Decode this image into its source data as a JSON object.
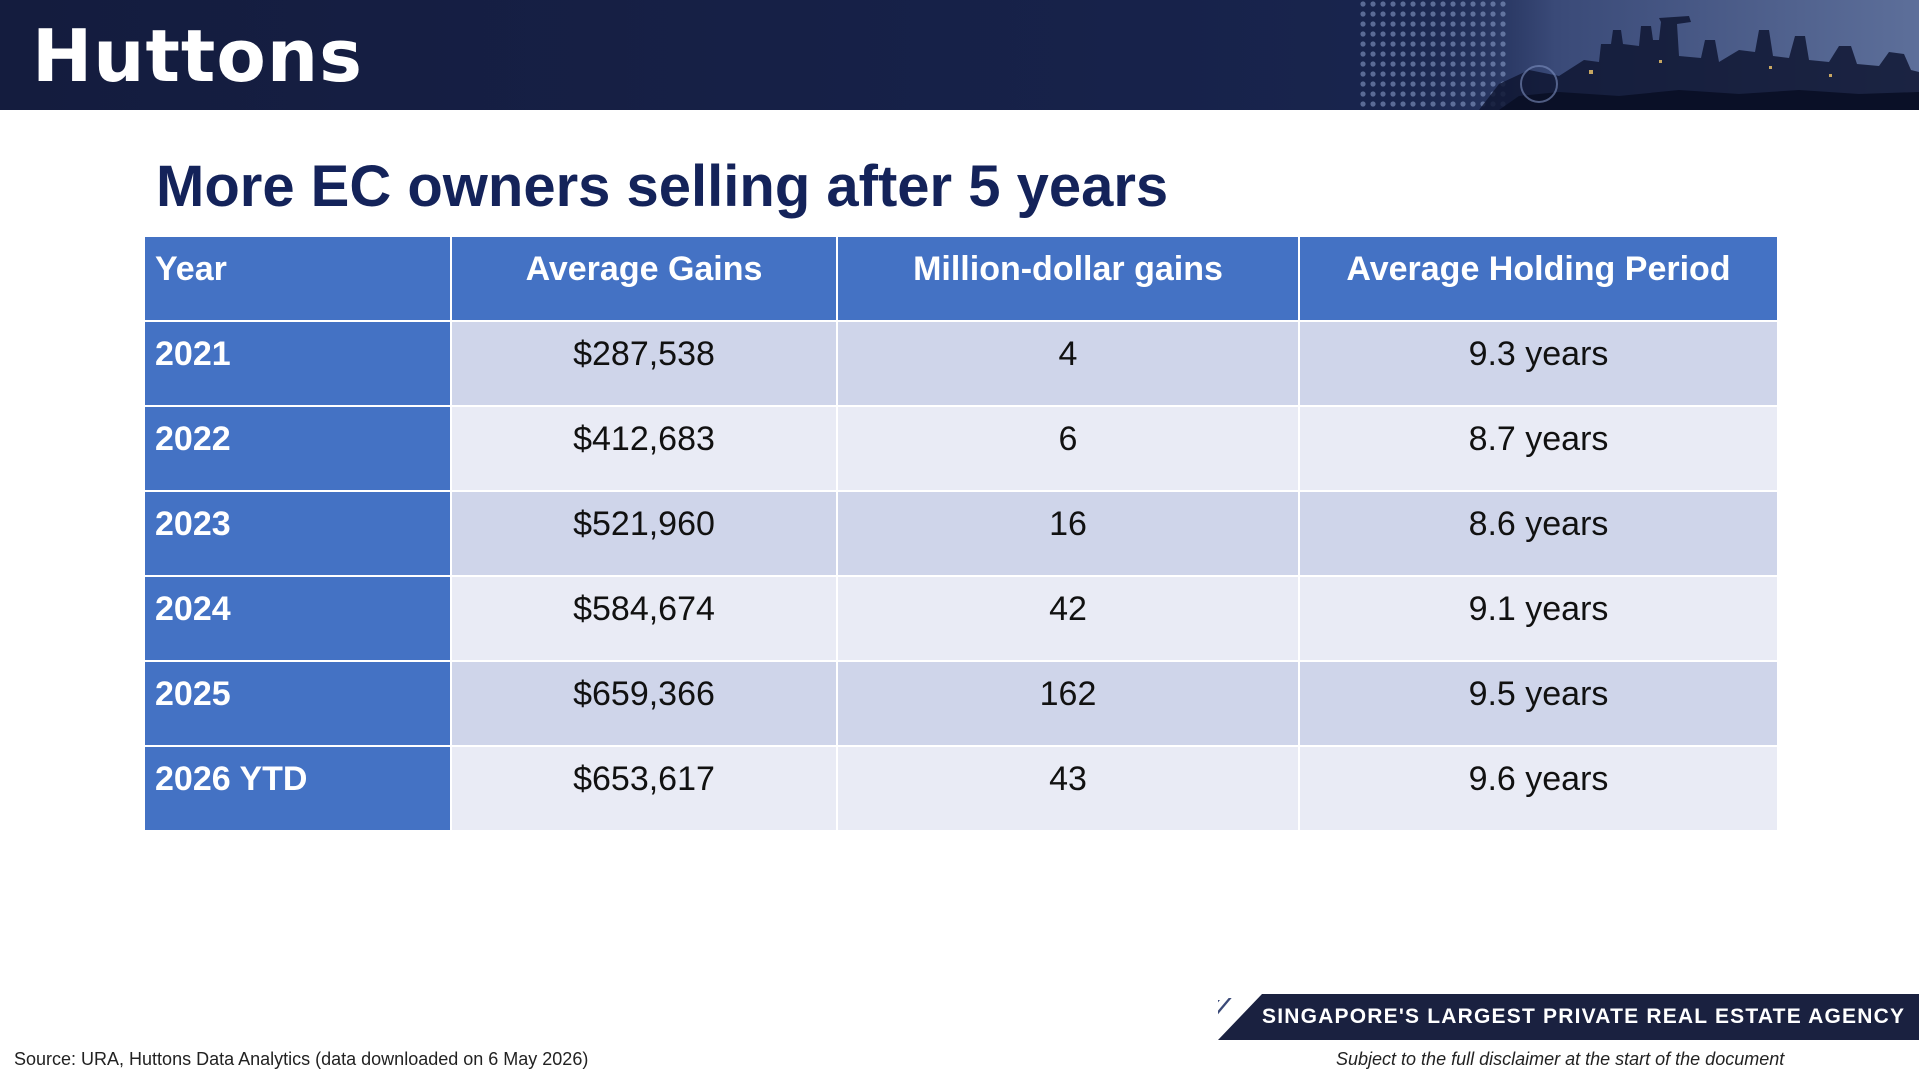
{
  "header": {
    "logo_text": "Huttons"
  },
  "slide": {
    "title": "More EC owners selling after 5 years"
  },
  "table": {
    "columns": [
      "Year",
      "Average Gains",
      "Million-dollar gains",
      "Average Holding Period"
    ],
    "rows": [
      {
        "year": "2021",
        "avg_gains": "$287,538",
        "million_dollar_gains": "4",
        "holding_period": "9.3 years"
      },
      {
        "year": "2022",
        "avg_gains": "$412,683",
        "million_dollar_gains": "6",
        "holding_period": "8.7 years"
      },
      {
        "year": "2023",
        "avg_gains": "$521,960",
        "million_dollar_gains": "16",
        "holding_period": "8.6 years"
      },
      {
        "year": "2024",
        "avg_gains": "$584,674",
        "million_dollar_gains": "42",
        "holding_period": "9.1 years"
      },
      {
        "year": "2025",
        "avg_gains": "$659,366",
        "million_dollar_gains": "162",
        "holding_period": "9.5 years"
      },
      {
        "year": "2026 YTD",
        "avg_gains": "$653,617",
        "million_dollar_gains": "43",
        "holding_period": "9.6 years"
      }
    ]
  },
  "footer": {
    "tagline": "SINGAPORE'S LARGEST PRIVATE REAL ESTATE AGENCY",
    "source": "Source: URA, Huttons Data Analytics (data downloaded on 6 May 2026)",
    "disclaimer": "Subject to the full disclaimer at the start of the document"
  },
  "colors": {
    "header_bg": "#141c3e",
    "title": "#14235a",
    "table_header": "#4472c4",
    "row_band_dark": "#cfd5ea",
    "row_band_light": "#e9ebf5"
  }
}
